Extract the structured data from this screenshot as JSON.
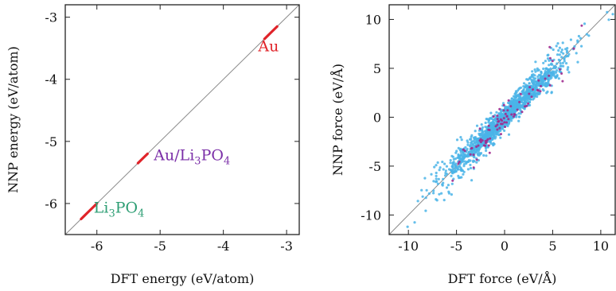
{
  "chart_data": [
    {
      "type": "scatter",
      "xlabel": "DFT energy (eV/atom)",
      "ylabel": "NNP energy (eV/atom)",
      "xlim": [
        -6.5,
        -2.8
      ],
      "ylim": [
        -6.5,
        -2.8
      ],
      "xticks": [
        -6,
        -5,
        -4,
        -3
      ],
      "yticks": [
        -6,
        -5,
        -4,
        -3
      ],
      "xtick_labels": [
        "-6",
        "-5",
        "-4",
        "-3"
      ],
      "ytick_labels": [
        "-6",
        "-5",
        "-4",
        "-3"
      ],
      "diagonal": true,
      "grid": false,
      "series": [
        {
          "name": "Au",
          "color": "#e0242a",
          "x": [
            -3.35,
            -3.3,
            -3.25,
            -3.2,
            -3.15
          ],
          "y": [
            -3.35,
            -3.3,
            -3.25,
            -3.2,
            -3.15
          ]
        },
        {
          "name": "Au/Li3PO4",
          "color": "#e0242a",
          "x": [
            -5.35,
            -5.3,
            -5.25,
            -5.2
          ],
          "y": [
            -5.35,
            -5.3,
            -5.25,
            -5.2
          ]
        },
        {
          "name": "Li3PO4",
          "color": "#e0242a",
          "x": [
            -6.25,
            -6.2,
            -6.15,
            -6.1,
            -6.05,
            -6.0
          ],
          "y": [
            -6.25,
            -6.2,
            -6.15,
            -6.1,
            -6.05,
            -6.0
          ]
        }
      ],
      "annotations": [
        {
          "text": "Au",
          "base": "Au",
          "sub": "",
          "tail": "",
          "color": "#e0242a",
          "x": -3.45,
          "y": -3.55
        },
        {
          "text": "Au/Li3PO4",
          "base": "Au/Li",
          "sub": "3",
          "tail": "PO",
          "sub2": "4",
          "color": "#7b2fa8",
          "x": -5.1,
          "y": -5.3
        },
        {
          "text": "Li3PO4",
          "base": "Li",
          "sub": "3",
          "tail": "PO",
          "sub2": "4",
          "color": "#2e9e74",
          "x": -6.05,
          "y": -6.15
        }
      ]
    },
    {
      "type": "scatter",
      "xlabel": "DFT force (eV/Å)",
      "ylabel": "NNP force (eV/Å)",
      "xlim": [
        -12,
        11.5
      ],
      "ylim": [
        -12,
        11.5
      ],
      "xticks": [
        -10,
        -5,
        0,
        5,
        10
      ],
      "yticks": [
        -10,
        -5,
        0,
        5,
        10
      ],
      "xtick_labels": [
        "-10",
        "-5",
        "0",
        "5",
        "10"
      ],
      "ytick_labels": [
        "-10",
        "-5",
        "0",
        "5",
        "10"
      ],
      "diagonal": true,
      "grid": false,
      "series": [
        {
          "name": "",
          "color": "#4ab4e8",
          "x_range": [
            -11,
            11
          ],
          "spread": 0.9,
          "count": 1400
        },
        {
          "name": "",
          "color": "#a02a8f",
          "x_range": [
            -11,
            11
          ],
          "spread": 1.1,
          "count": 90
        }
      ]
    }
  ]
}
